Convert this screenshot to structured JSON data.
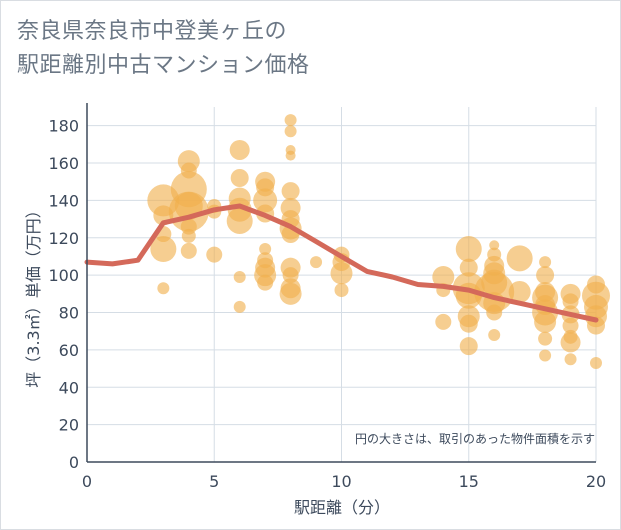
{
  "page": {
    "title_line1": "奈良県奈良市中登美ヶ丘の",
    "title_line2": "駅距離別中古マンション価格"
  },
  "chart_data": {
    "type": "scatter",
    "xlabel": "駅距離（分）",
    "ylabel": "坪（3.3㎡）単価（万円）",
    "annotation": "円の大きさは、取引のあった物件面積を示す",
    "xlim": [
      0,
      20
    ],
    "ylim": [
      0,
      190
    ],
    "xticks": [
      0,
      5,
      10,
      15,
      20
    ],
    "yticks": [
      0,
      20,
      40,
      60,
      80,
      100,
      120,
      140,
      160,
      180
    ],
    "grid": true,
    "colors": {
      "bubble": "#f0b04e",
      "trend": "#d4695a",
      "grid": "#d5dde5",
      "axis": "#3d4a5c"
    },
    "bubbles": [
      {
        "x": 3,
        "y": 140,
        "s": 16
      },
      {
        "x": 3,
        "y": 132,
        "s": 10
      },
      {
        "x": 3,
        "y": 122,
        "s": 8
      },
      {
        "x": 3,
        "y": 114,
        "s": 13
      },
      {
        "x": 3,
        "y": 93,
        "s": 6
      },
      {
        "x": 4,
        "y": 161,
        "s": 11
      },
      {
        "x": 4,
        "y": 156,
        "s": 8
      },
      {
        "x": 4,
        "y": 146,
        "s": 18
      },
      {
        "x": 4,
        "y": 137,
        "s": 14
      },
      {
        "x": 4,
        "y": 134,
        "s": 20
      },
      {
        "x": 4,
        "y": 126,
        "s": 8
      },
      {
        "x": 4,
        "y": 121,
        "s": 7
      },
      {
        "x": 4,
        "y": 113,
        "s": 8
      },
      {
        "x": 5,
        "y": 137,
        "s": 7
      },
      {
        "x": 5,
        "y": 134,
        "s": 7
      },
      {
        "x": 5,
        "y": 111,
        "s": 8
      },
      {
        "x": 6,
        "y": 167,
        "s": 10
      },
      {
        "x": 6,
        "y": 152,
        "s": 9
      },
      {
        "x": 6,
        "y": 141,
        "s": 11
      },
      {
        "x": 6,
        "y": 135,
        "s": 12
      },
      {
        "x": 6,
        "y": 129,
        "s": 13
      },
      {
        "x": 6,
        "y": 99,
        "s": 6
      },
      {
        "x": 6,
        "y": 83,
        "s": 6
      },
      {
        "x": 7,
        "y": 150,
        "s": 10
      },
      {
        "x": 7,
        "y": 147,
        "s": 9
      },
      {
        "x": 7,
        "y": 140,
        "s": 12
      },
      {
        "x": 7,
        "y": 133,
        "s": 9
      },
      {
        "x": 7,
        "y": 114,
        "s": 6
      },
      {
        "x": 7,
        "y": 108,
        "s": 8
      },
      {
        "x": 7,
        "y": 104,
        "s": 10
      },
      {
        "x": 7,
        "y": 100,
        "s": 11
      },
      {
        "x": 7,
        "y": 96,
        "s": 8
      },
      {
        "x": 8,
        "y": 183,
        "s": 6
      },
      {
        "x": 8,
        "y": 177,
        "s": 6
      },
      {
        "x": 8,
        "y": 167,
        "s": 5
      },
      {
        "x": 8,
        "y": 164,
        "s": 5
      },
      {
        "x": 8,
        "y": 145,
        "s": 9
      },
      {
        "x": 8,
        "y": 136,
        "s": 10
      },
      {
        "x": 8,
        "y": 130,
        "s": 9
      },
      {
        "x": 8,
        "y": 125,
        "s": 11
      },
      {
        "x": 8,
        "y": 122,
        "s": 9
      },
      {
        "x": 8,
        "y": 104,
        "s": 10
      },
      {
        "x": 8,
        "y": 100,
        "s": 8
      },
      {
        "x": 8,
        "y": 93,
        "s": 10
      },
      {
        "x": 8,
        "y": 90,
        "s": 11
      },
      {
        "x": 9,
        "y": 107,
        "s": 6
      },
      {
        "x": 10,
        "y": 111,
        "s": 8
      },
      {
        "x": 10,
        "y": 107,
        "s": 9
      },
      {
        "x": 10,
        "y": 101,
        "s": 11
      },
      {
        "x": 10,
        "y": 92,
        "s": 7
      },
      {
        "x": 14,
        "y": 99,
        "s": 11
      },
      {
        "x": 14,
        "y": 92,
        "s": 7
      },
      {
        "x": 14,
        "y": 75,
        "s": 8
      },
      {
        "x": 15,
        "y": 114,
        "s": 13
      },
      {
        "x": 15,
        "y": 104,
        "s": 9
      },
      {
        "x": 15,
        "y": 93,
        "s": 16
      },
      {
        "x": 15,
        "y": 89,
        "s": 13
      },
      {
        "x": 15,
        "y": 78,
        "s": 11
      },
      {
        "x": 15,
        "y": 74,
        "s": 9
      },
      {
        "x": 15,
        "y": 62,
        "s": 9
      },
      {
        "x": 16,
        "y": 116,
        "s": 5
      },
      {
        "x": 16,
        "y": 111,
        "s": 7
      },
      {
        "x": 16,
        "y": 105,
        "s": 10
      },
      {
        "x": 16,
        "y": 101,
        "s": 11
      },
      {
        "x": 16,
        "y": 96,
        "s": 13
      },
      {
        "x": 16,
        "y": 91,
        "s": 20
      },
      {
        "x": 16,
        "y": 85,
        "s": 11
      },
      {
        "x": 16,
        "y": 80,
        "s": 8
      },
      {
        "x": 16,
        "y": 68,
        "s": 6
      },
      {
        "x": 17,
        "y": 109,
        "s": 13
      },
      {
        "x": 17,
        "y": 91,
        "s": 11
      },
      {
        "x": 18,
        "y": 107,
        "s": 6
      },
      {
        "x": 18,
        "y": 100,
        "s": 9
      },
      {
        "x": 18,
        "y": 91,
        "s": 10
      },
      {
        "x": 18,
        "y": 88,
        "s": 13
      },
      {
        "x": 18,
        "y": 84,
        "s": 10
      },
      {
        "x": 18,
        "y": 80,
        "s": 13
      },
      {
        "x": 18,
        "y": 75,
        "s": 11
      },
      {
        "x": 18,
        "y": 66,
        "s": 7
      },
      {
        "x": 18,
        "y": 57,
        "s": 6
      },
      {
        "x": 19,
        "y": 90,
        "s": 10
      },
      {
        "x": 19,
        "y": 86,
        "s": 8
      },
      {
        "x": 19,
        "y": 79,
        "s": 9
      },
      {
        "x": 19,
        "y": 73,
        "s": 8
      },
      {
        "x": 19,
        "y": 67,
        "s": 7
      },
      {
        "x": 19,
        "y": 64,
        "s": 10
      },
      {
        "x": 19,
        "y": 55,
        "s": 6
      },
      {
        "x": 20,
        "y": 95,
        "s": 9
      },
      {
        "x": 20,
        "y": 89,
        "s": 14
      },
      {
        "x": 20,
        "y": 83,
        "s": 12
      },
      {
        "x": 20,
        "y": 78,
        "s": 11
      },
      {
        "x": 20,
        "y": 73,
        "s": 9
      },
      {
        "x": 20,
        "y": 53,
        "s": 6
      }
    ],
    "trend": {
      "x": [
        0,
        1,
        2,
        3,
        4,
        5,
        6,
        7,
        8,
        9,
        10,
        11,
        12,
        13,
        14,
        15,
        16,
        17,
        18,
        19,
        20
      ],
      "y": [
        107,
        106,
        108,
        128,
        131,
        135,
        137,
        132,
        126,
        118,
        110,
        102,
        99,
        95,
        94,
        92,
        88,
        85,
        82,
        79,
        76
      ]
    }
  }
}
